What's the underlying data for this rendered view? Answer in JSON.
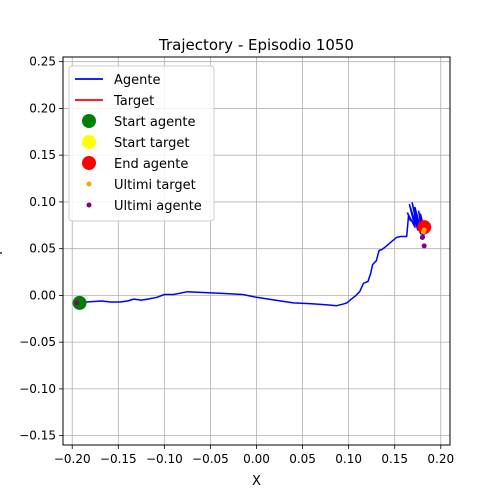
{
  "chart_data": {
    "type": "line",
    "title": "Trajectory - Episodio 1050",
    "xlabel": "X",
    "ylabel": "Y",
    "xlim": [
      -0.21,
      0.21
    ],
    "ylim": [
      -0.16,
      0.255
    ],
    "xticks": [
      -0.2,
      -0.15,
      -0.1,
      -0.05,
      0.0,
      0.05,
      0.1,
      0.15,
      0.2
    ],
    "xtick_labels": [
      "−0.20",
      "−0.15",
      "−0.10",
      "−0.05",
      "0.00",
      "0.05",
      "0.10",
      "0.15",
      "0.20"
    ],
    "yticks": [
      -0.15,
      -0.1,
      -0.05,
      0.0,
      0.05,
      0.1,
      0.15,
      0.2,
      0.25
    ],
    "ytick_labels": [
      "−0.15",
      "−0.10",
      "−0.05",
      "0.00",
      "0.05",
      "0.10",
      "0.15",
      "0.20",
      "0.25"
    ],
    "grid": true,
    "legend_position": "top-left",
    "legend": [
      {
        "label": "Agente",
        "kind": "line",
        "color": "#0000ff"
      },
      {
        "label": "Target",
        "kind": "line",
        "color": "#ff0000"
      },
      {
        "label": "Start agente",
        "kind": "marker",
        "color": "#008000"
      },
      {
        "label": "Start target",
        "kind": "marker",
        "color": "#ffff00"
      },
      {
        "label": "End agente",
        "kind": "marker",
        "color": "#ff0000"
      },
      {
        "label": "Ultimi target",
        "kind": "small-marker",
        "color": "#ffa500"
      },
      {
        "label": "Ultimi agente",
        "kind": "small-marker",
        "color": "#800080"
      }
    ],
    "series": [
      {
        "name": "Agente",
        "color": "#0000ff",
        "x": [
          -0.193,
          -0.185,
          -0.168,
          -0.158,
          -0.148,
          -0.14,
          -0.133,
          -0.125,
          -0.118,
          -0.108,
          -0.1,
          -0.09,
          -0.075,
          -0.055,
          -0.035,
          -0.015,
          0.0,
          0.02,
          0.04,
          0.06,
          0.075,
          0.087,
          0.095,
          0.098,
          0.103,
          0.108,
          0.112,
          0.116,
          0.121,
          0.124,
          0.126,
          0.13,
          0.133,
          0.136,
          0.14,
          0.146,
          0.152,
          0.156,
          0.16,
          0.163,
          0.165,
          0.167,
          0.164,
          0.172,
          0.166,
          0.175,
          0.169,
          0.178,
          0.172,
          0.18,
          0.176,
          0.182,
          0.178,
          0.183,
          0.18
        ],
        "y": [
          -0.008,
          -0.007,
          -0.006,
          -0.007,
          -0.007,
          -0.006,
          -0.004,
          -0.005,
          -0.004,
          -0.002,
          0.001,
          0.001,
          0.004,
          0.003,
          0.002,
          0.001,
          -0.002,
          -0.005,
          -0.008,
          -0.009,
          -0.01,
          -0.011,
          -0.009,
          -0.008,
          -0.004,
          0.0,
          0.004,
          0.013,
          0.015,
          0.024,
          0.033,
          0.037,
          0.048,
          0.049,
          0.052,
          0.057,
          0.062,
          0.063,
          0.063,
          0.063,
          0.085,
          0.08,
          0.088,
          0.073,
          0.097,
          0.07,
          0.099,
          0.066,
          0.094,
          0.064,
          0.09,
          0.062,
          0.087,
          0.066,
          0.075
        ]
      }
    ],
    "markers": {
      "start_agente": {
        "x": -0.192,
        "y": -0.008,
        "color": "#008000"
      },
      "end_agente": {
        "x": 0.182,
        "y": 0.073,
        "color": "#ff0000"
      },
      "ultimi_target": [
        {
          "x": 0.181,
          "y": 0.068
        },
        {
          "x": 0.182,
          "y": 0.07
        }
      ],
      "ultimi_agente": [
        {
          "x": 0.182,
          "y": 0.053
        },
        {
          "x": 0.18,
          "y": 0.062
        },
        {
          "x": -0.195,
          "y": -0.008
        }
      ]
    }
  }
}
